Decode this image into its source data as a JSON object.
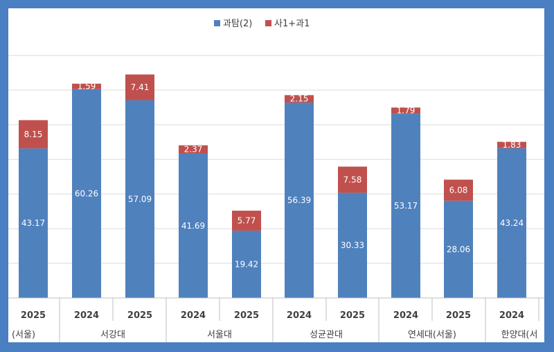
{
  "chart_data": {
    "type": "bar",
    "stacked": true,
    "title": "",
    "xlabel": "",
    "ylabel": "",
    "ylim": [
      0,
      70
    ],
    "grid": true,
    "legend_position": "top-center",
    "categories": [
      "2025",
      "2024",
      "2025",
      "2024",
      "2025",
      "2024",
      "2025",
      "2024",
      "2025",
      "2024"
    ],
    "groups": [
      {
        "label": "(서울)"
      },
      {
        "label": "서강대"
      },
      {
        "label": "서울대"
      },
      {
        "label": "성균관대"
      },
      {
        "label": "연세대(서울)"
      },
      {
        "label": "한양대(서"
      }
    ],
    "series": [
      {
        "name": "과탐(2)",
        "color": "#4f81bd",
        "values": [
          43.17,
          60.26,
          57.09,
          41.69,
          19.42,
          56.39,
          30.33,
          53.17,
          28.06,
          43.24
        ]
      },
      {
        "name": "사1+과1",
        "color": "#c0504d",
        "values": [
          8.15,
          1.59,
          7.41,
          2.37,
          5.77,
          2.15,
          7.58,
          1.79,
          6.08,
          1.83
        ]
      }
    ]
  }
}
